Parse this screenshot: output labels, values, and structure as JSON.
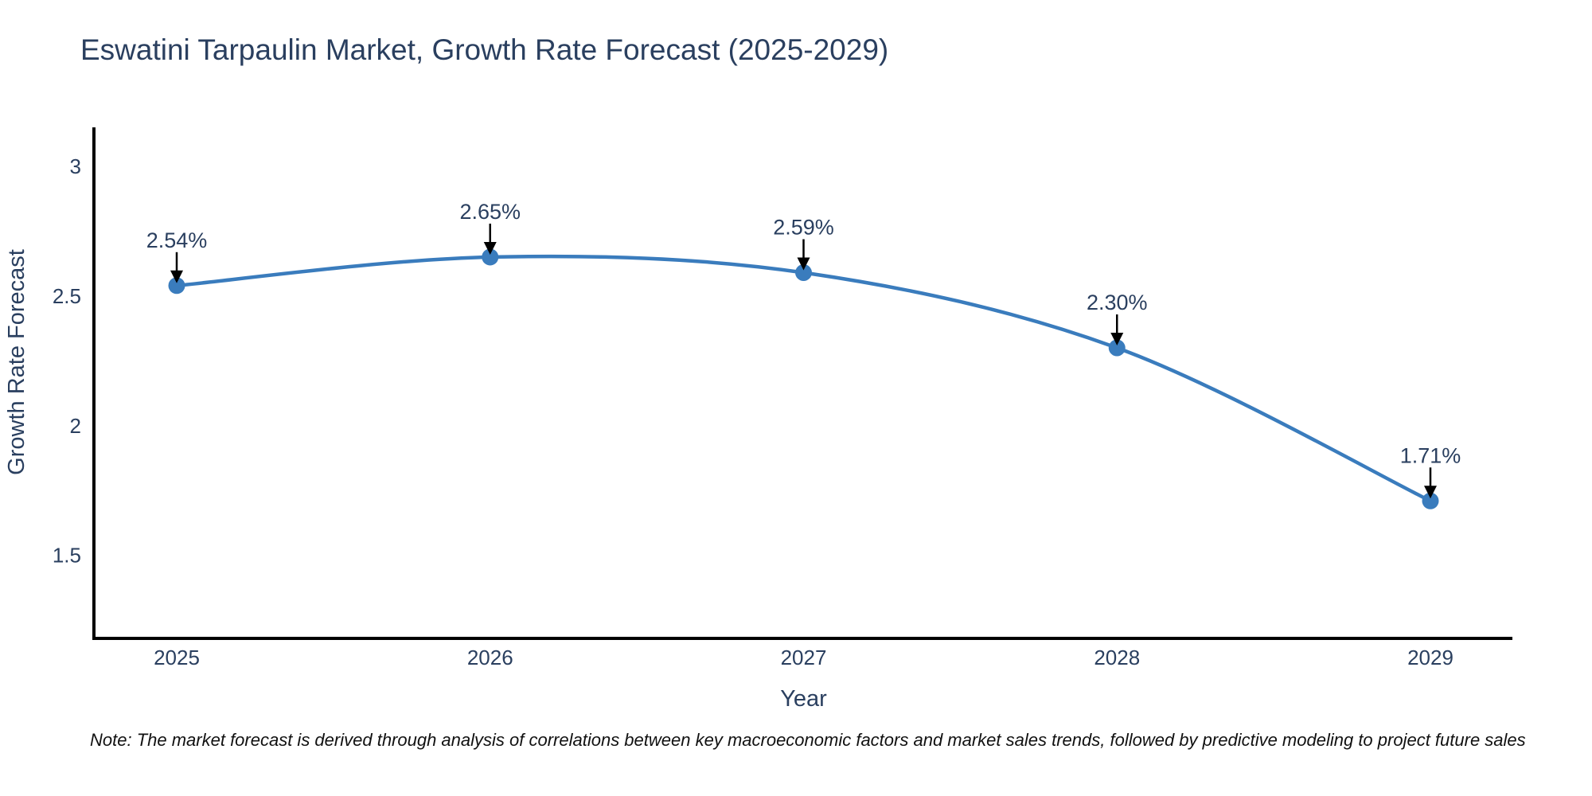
{
  "page": {
    "note": "Note: The market forecast is derived through analysis of correlations between key macroeconomic factors and market sales trends, followed by predictive modeling to project future sales"
  },
  "chart_data": {
    "type": "line",
    "title": "Eswatini Tarpaulin Market, Growth Rate Forecast (2025-2029)",
    "x": [
      2025,
      2026,
      2027,
      2028,
      2029
    ],
    "series": [
      {
        "name": "Growth Rate Forecast",
        "values": [
          2.54,
          2.65,
          2.59,
          2.3,
          1.71
        ]
      }
    ],
    "point_labels": [
      "2.54%",
      "2.65%",
      "2.59%",
      "2.30%",
      "1.71%"
    ],
    "xlabel": "Year",
    "ylabel": "Growth Rate Forecast",
    "xticks": [
      "2025",
      "2026",
      "2027",
      "2028",
      "2029"
    ],
    "yticks": [
      "1.5",
      "2",
      "2.5",
      "3"
    ],
    "ylim": [
      1.18,
      3.15
    ],
    "grid": false,
    "legend": false,
    "line_shape": "spline",
    "marker": "circle",
    "annotation_arrows": true,
    "colors": {
      "line": "#3a7cbd",
      "marker": "#3a7cbd",
      "axis": "#000000",
      "text": "#2a3f5f",
      "arrow": "#000000",
      "background": "#ffffff"
    }
  }
}
